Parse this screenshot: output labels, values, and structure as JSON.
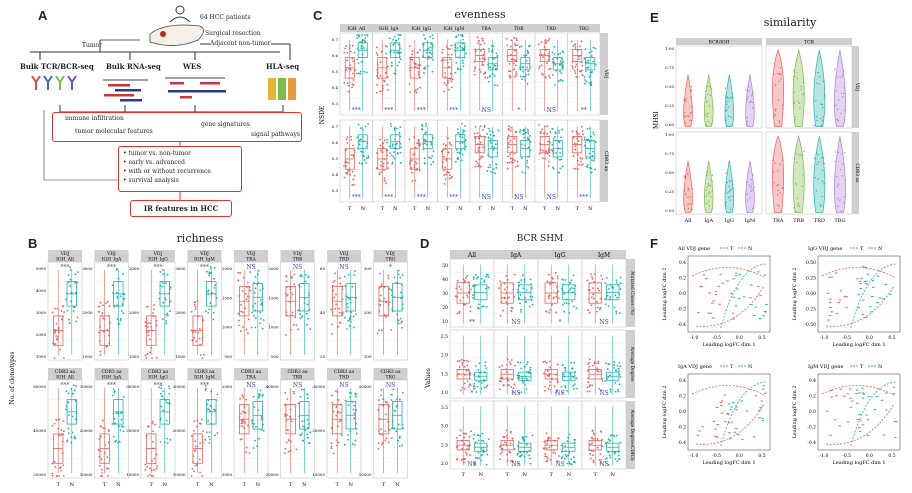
{
  "colors": {
    "T": "#e8625a",
    "N": "#20b2aa",
    "sig": "#3a3ac8",
    "strip": "#cfcfcf",
    "panelbg": "#ebebeb",
    "violet": "#b07fd8",
    "green": "#7cba4a",
    "orange": "#e89a3c",
    "teal": "#2ab3aa"
  },
  "panelA": {
    "label": "A",
    "patients": "64 HCC patients",
    "surgical": "Surgical resection",
    "tumor": "Tumor",
    "adjacent": "Adjacent non-tumor",
    "methods": [
      "Bulk TCR/BCR-seq",
      "Bulk RNA-seq",
      "WES",
      "HLA-seq"
    ],
    "features": [
      "immune infiltration",
      "tumor molecular features",
      "gene signatures",
      "signal pathways"
    ],
    "comparisons": [
      "tumor vs. non-tumor",
      "early vs. advanced",
      "with or without recurrence",
      "survival analysis"
    ],
    "result": "IR features in HCC"
  },
  "panelB": {
    "label": "B",
    "title": "richness",
    "ylabel": "No. of clonotypes",
    "top_strips": [
      [
        "VDJ",
        "IGH_All"
      ],
      [
        "VDJ",
        "IGH_IgA"
      ],
      [
        "VDJ",
        "IGH_IgG"
      ],
      [
        "VDJ",
        "IGH_IgM"
      ],
      [
        "VDJ",
        "TRA"
      ],
      [
        "VDJ",
        "TRB"
      ],
      [
        "VDJ",
        "TRD"
      ],
      [
        "VDJ",
        "TRG"
      ]
    ],
    "bottom_strips": [
      [
        "CDR3 aa",
        "IGH_All"
      ],
      [
        "CDR3 aa",
        "IGH_IgA"
      ],
      [
        "CDR3 aa",
        "IGH_IgG"
      ],
      [
        "CDR3 aa",
        "IGH_IgM"
      ],
      [
        "CDR3 aa",
        "TRA"
      ],
      [
        "CDR3 aa",
        "TRB"
      ],
      [
        "CDR3 aa",
        "TRD"
      ],
      [
        "CDR3 aa",
        "TRG"
      ]
    ],
    "top_sig": [
      "***",
      "***",
      "***",
      "***",
      "NS",
      "NS",
      "NS",
      "*"
    ],
    "bottom_sig": [
      "***",
      "***",
      "***",
      "***",
      "NS",
      "NS",
      "NS",
      "NS"
    ],
    "top_ticks": [
      [
        "5000",
        "4000",
        "3000",
        "2000",
        "1000"
      ],
      [
        "3000",
        "2000",
        "1000"
      ],
      [
        "3000",
        "2000",
        "1000"
      ],
      [
        "3000",
        "2000",
        "1000"
      ],
      [
        "2000",
        "1500",
        "1000",
        "500"
      ],
      [
        "2000",
        "1500",
        "1000",
        "500"
      ],
      [
        "60",
        "40",
        "20"
      ],
      [
        "300",
        "200",
        "100"
      ]
    ],
    "bottom_ticks": [
      [
        "60000",
        "40000",
        "20000"
      ],
      [
        "30000",
        "20000",
        "10000"
      ],
      [
        "30000",
        "20000",
        "10000"
      ],
      [
        "30000",
        "20000",
        "10000"
      ],
      [
        "2000",
        "1000"
      ],
      [
        "40000",
        "20000"
      ],
      [
        "30000",
        "20000",
        "10000"
      ],
      [
        "20000",
        "10000"
      ]
    ],
    "xcats": [
      "T",
      "N"
    ]
  },
  "panelC": {
    "label": "C",
    "title": "evenness",
    "ylabel": "NSDE",
    "strips": [
      "IGH_All",
      "IGH_IgA",
      "IGH_IgG",
      "IGH_IgM",
      "TRA",
      "TRB",
      "TRD",
      "TRG"
    ],
    "row_strips": [
      "VDJ",
      "CDR3 aa"
    ],
    "top_sig": [
      "***",
      "***",
      "***",
      "***",
      "NS",
      "*",
      "NS",
      "**"
    ],
    "bottom_sig": [
      "***",
      "***",
      "***",
      "***",
      "NS",
      "NS",
      "NS",
      "***"
    ],
    "yticks": [
      "0.7",
      "0.6",
      "0.5",
      "0.4",
      "0.3"
    ],
    "xcats": [
      "T",
      "N"
    ]
  },
  "panelD": {
    "label": "D",
    "title": "BCR SHM",
    "ylabel": "Values",
    "strips": [
      "All",
      "IgA",
      "IgG",
      "IgM"
    ],
    "row_strips": [
      "Mutated Clones (%)",
      "Average Degree",
      "Average Degree(CDR3)"
    ],
    "row1_sig": [
      "**",
      "NS",
      "*",
      "NS"
    ],
    "row2_sig": [
      "*",
      "NS",
      "NS",
      "NS"
    ],
    "row3_sig": [
      "NS",
      "NS",
      "NS",
      "NS"
    ],
    "row1_ticks": [
      "50",
      "40",
      "30",
      "20",
      "10"
    ],
    "row2_ticks": [
      "2.5",
      "2.0",
      "1.5",
      "1.0"
    ],
    "row3_ticks": [
      "3.5",
      "3.0",
      "2.5",
      "2.0"
    ],
    "xcats": [
      "T",
      "N"
    ]
  },
  "panelE": {
    "label": "E",
    "title": "similarity",
    "ylabel": "MHSI",
    "col_strips": [
      "BCR/IGH",
      "TCR"
    ],
    "row_strips": [
      "VDJ",
      "CDR3 aa"
    ],
    "xcats": [
      "All",
      "IgA",
      "IgG",
      "IgM",
      "TRA",
      "TRB",
      "TRD",
      "TRG"
    ],
    "yticks": [
      "1.00",
      "0.75",
      "0.50",
      "0.25",
      "0.00"
    ]
  },
  "panelF": {
    "label": "F",
    "subplots": [
      {
        "title": "All VDJ gene",
        "legT": "T",
        "legN": "N",
        "xlabel": "Leading logFC dim 1",
        "ylabel": "Leading logFC dim 2",
        "xticks": [
          "-1.0",
          "-0.5",
          "0.0",
          "0.5"
        ],
        "yticks": [
          "0.4",
          "0.2",
          "0.0",
          "-0.2",
          "-0.4"
        ]
      },
      {
        "title": "IgG VDJ gene",
        "legT": "T",
        "legN": "N",
        "xlabel": "Leading logFC dim 1",
        "ylabel": "Leading logFC dim 2",
        "xticks": [
          "-1.0",
          "-0.5",
          "0.0",
          "0.5"
        ],
        "yticks": [
          "0.50",
          "0.25",
          "0.00",
          "-0.25",
          "-0.50"
        ]
      },
      {
        "title": "IgA VDJ gene",
        "legT": "T",
        "legN": "N",
        "xlabel": "Leading logFC dim 1",
        "ylabel": "Leading logFC dim 2",
        "xticks": [
          "-1.0",
          "-0.5",
          "0.0",
          "0.5"
        ],
        "yticks": [
          "0.4",
          "0.2",
          "0.0",
          "-0.2",
          "-0.4"
        ]
      },
      {
        "title": "IgM VDJ gene",
        "legT": "T",
        "legN": "N",
        "xlabel": "Leading logFC dim 1",
        "ylabel": "Leading logFC dim 2",
        "xticks": [
          "-1.0",
          "-0.5",
          "0.0",
          "0.5"
        ],
        "yticks": [
          "0.4",
          "0.2",
          "0.0",
          "-0.2",
          "-0.4"
        ]
      }
    ]
  }
}
